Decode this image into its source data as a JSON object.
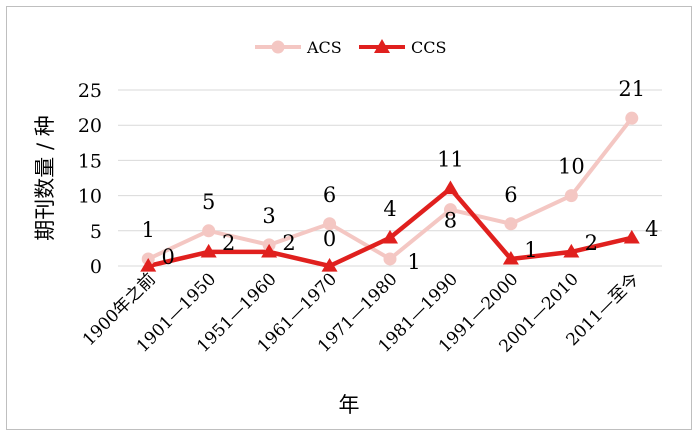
{
  "chart_data": {
    "type": "line",
    "categories": [
      "1900年之前",
      "1901—1950",
      "1951—1960",
      "1961—1970",
      "1971—1980",
      "1981—1990",
      "1991—2000",
      "2001—2010",
      "2011—至今"
    ],
    "series": [
      {
        "name": "ACS",
        "values": [
          1,
          5,
          3,
          6,
          1,
          8,
          6,
          10,
          21
        ],
        "color": "#f4c7c3",
        "marker": "circle"
      },
      {
        "name": "CCS",
        "values": [
          0,
          2,
          2,
          0,
          4,
          11,
          1,
          2,
          4
        ],
        "color": "#e0201e",
        "marker": "triangle"
      }
    ],
    "xlabel": "年",
    "ylabel": "期刊数量 / 种",
    "ylim": [
      0,
      25
    ],
    "yticks": [
      0,
      5,
      10,
      15,
      20,
      25
    ],
    "grid": true,
    "legend": "top-center"
  }
}
